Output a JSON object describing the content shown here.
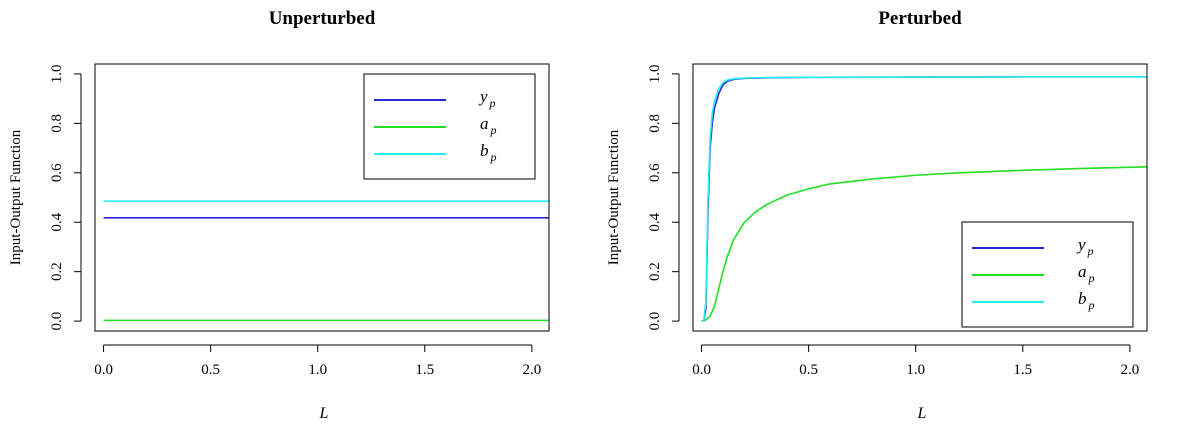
{
  "chart_data": [
    {
      "type": "line",
      "title": "Unperturbed",
      "xlabel": "L",
      "ylabel": "Input-Output Function",
      "xlim": [
        -0.04,
        2.08
      ],
      "ylim": [
        -0.04,
        1.04
      ],
      "xticks": [
        "0.0",
        "0.5",
        "1.0",
        "1.5",
        "2.0"
      ],
      "yticks": [
        "0.0",
        "0.2",
        "0.4",
        "0.6",
        "0.8",
        "1.0"
      ],
      "legend_position": "top-right",
      "series": [
        {
          "label_main": "y",
          "label_sub": "p",
          "color": "#2828d8",
          "x": [
            0.0,
            2.08
          ],
          "y": [
            0.418,
            0.418
          ]
        },
        {
          "label_main": "a",
          "label_sub": "p",
          "color": "#22e022",
          "x": [
            0.0,
            2.08
          ],
          "y": [
            0.003,
            0.003
          ]
        },
        {
          "label_main": "b",
          "label_sub": "p",
          "color": "#22f0f0",
          "x": [
            0.0,
            2.08
          ],
          "y": [
            0.485,
            0.485
          ]
        }
      ]
    },
    {
      "type": "line",
      "title": "Perturbed",
      "xlabel": "L",
      "ylabel": "Input-Output Function",
      "xlim": [
        -0.04,
        2.08
      ],
      "ylim": [
        -0.04,
        1.04
      ],
      "xticks": [
        "0.0",
        "0.5",
        "1.0",
        "1.5",
        "2.0"
      ],
      "yticks": [
        "0.0",
        "0.2",
        "0.4",
        "0.6",
        "0.8",
        "1.0"
      ],
      "legend_position": "bottom-right",
      "series": [
        {
          "label_main": "y",
          "label_sub": "p",
          "color": "#2828d8",
          "x": [
            0.01,
            0.02,
            0.03,
            0.04,
            0.05,
            0.06,
            0.08,
            0.1,
            0.12,
            0.15,
            0.2,
            0.3,
            0.5,
            1.0,
            1.5,
            2.08
          ],
          "y": [
            0.0,
            0.05,
            0.45,
            0.7,
            0.8,
            0.86,
            0.92,
            0.955,
            0.97,
            0.978,
            0.982,
            0.984,
            0.986,
            0.987,
            0.988,
            0.988
          ]
        },
        {
          "label_main": "a",
          "label_sub": "p",
          "color": "#22e022",
          "x": [
            0.0,
            0.02,
            0.04,
            0.06,
            0.08,
            0.1,
            0.12,
            0.15,
            0.2,
            0.25,
            0.3,
            0.4,
            0.5,
            0.6,
            0.8,
            1.0,
            1.2,
            1.5,
            1.8,
            2.08
          ],
          "y": [
            0.0,
            0.005,
            0.02,
            0.06,
            0.13,
            0.2,
            0.26,
            0.33,
            0.4,
            0.44,
            0.47,
            0.51,
            0.535,
            0.555,
            0.575,
            0.59,
            0.6,
            0.61,
            0.618,
            0.624
          ]
        },
        {
          "label_main": "b",
          "label_sub": "p",
          "color": "#22f0f0",
          "x": [
            0.01,
            0.02,
            0.03,
            0.04,
            0.05,
            0.06,
            0.08,
            0.1,
            0.12,
            0.15,
            0.2,
            0.3,
            0.5,
            1.0,
            1.5,
            2.08
          ],
          "y": [
            0.0,
            0.08,
            0.5,
            0.74,
            0.84,
            0.89,
            0.94,
            0.965,
            0.975,
            0.98,
            0.983,
            0.985,
            0.986,
            0.987,
            0.988,
            0.988
          ]
        }
      ]
    }
  ]
}
